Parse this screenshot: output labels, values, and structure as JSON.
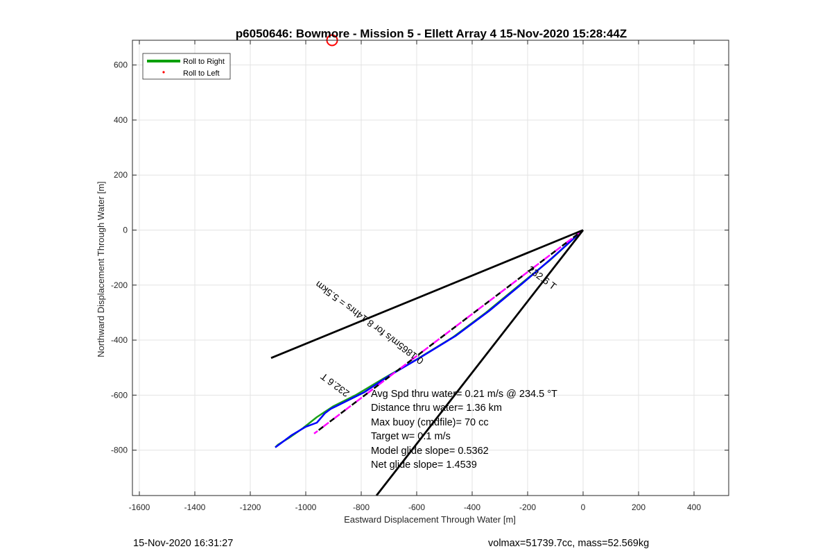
{
  "chart_data": {
    "type": "line",
    "title": "p6050646: Bowmore - Mission 5 - Ellett Array 4 15-Nov-2020 15:28:44Z",
    "xlabel": "Eastward Displacement Through Water [m]",
    "ylabel": "Northward Displacement Through Water [m]",
    "xlim": [
      -1625,
      525
    ],
    "ylim": [
      -965,
      690
    ],
    "xticks": [
      -1600,
      -1400,
      -1200,
      -1000,
      -800,
      -600,
      -400,
      -200,
      0,
      200,
      400
    ],
    "yticks": [
      600,
      400,
      200,
      0,
      -200,
      -400,
      -600,
      -800
    ],
    "grid": true,
    "legend": {
      "placement": "top-left",
      "entries": [
        {
          "name": "Roll to Right",
          "color": "#00a000",
          "style": "line"
        },
        {
          "name": "Roll to Left",
          "color": "#ff0000",
          "style": "dot"
        }
      ]
    },
    "series": [
      {
        "name": "Roll to Right",
        "color": "#1aa01a",
        "x": [
          0,
          -120,
          -230,
          -350,
          -470,
          -600,
          -720,
          -820,
          -900,
          -960,
          -1010,
          -1060,
          -1100,
          -1110
        ],
        "y": [
          0,
          -110,
          -200,
          -300,
          -390,
          -470,
          -540,
          -600,
          -640,
          -680,
          -720,
          -755,
          -780,
          -790
        ]
      },
      {
        "color": "#0000ff",
        "x": [
          0,
          -110,
          -220,
          -340,
          -460,
          -590,
          -700,
          -790,
          -890,
          -910,
          -930,
          -960,
          -1000,
          -1050,
          -1090,
          -1110
        ],
        "y": [
          0,
          -100,
          -195,
          -295,
          -385,
          -465,
          -530,
          -590,
          -640,
          -650,
          -665,
          -700,
          -715,
          -745,
          -775,
          -790
        ]
      },
      {
        "color": "#ff00ff",
        "style": "dashed",
        "x": [
          0,
          -970
        ],
        "y": [
          0,
          -740
        ]
      },
      {
        "color": "#000000",
        "style": "dashed",
        "x": [
          0,
          -970
        ],
        "y": [
          0,
          -740
        ]
      },
      {
        "color": "#000000",
        "x": [
          0,
          -1125
        ],
        "y": [
          0,
          -465
        ]
      },
      {
        "color": "#000000",
        "x": [
          0,
          -745
        ],
        "y": [
          0,
          -965
        ]
      }
    ],
    "marker": {
      "x": -905,
      "y": 690,
      "color": "#ff0000",
      "shape": "circle"
    },
    "annotations": {
      "line_labels": [
        "232.6 T",
        "0.1865m/s for 8.14hrs = 5.5km",
        "232.6 T"
      ],
      "info": [
        "Avg Spd thru water=  0.21 m/s @ 234.5 °T",
        "Distance thru water=  1.36 km",
        "Max buoy (cmdfile)= 70 cc",
        "Target w= 0.1 m/s",
        "Model glide slope= 0.5362",
        "Net glide slope= 1.4539"
      ]
    }
  },
  "footer": {
    "left": "15-Nov-2020 16:31:27",
    "right": "volmax=51739.7cc, mass=52.569kg"
  }
}
